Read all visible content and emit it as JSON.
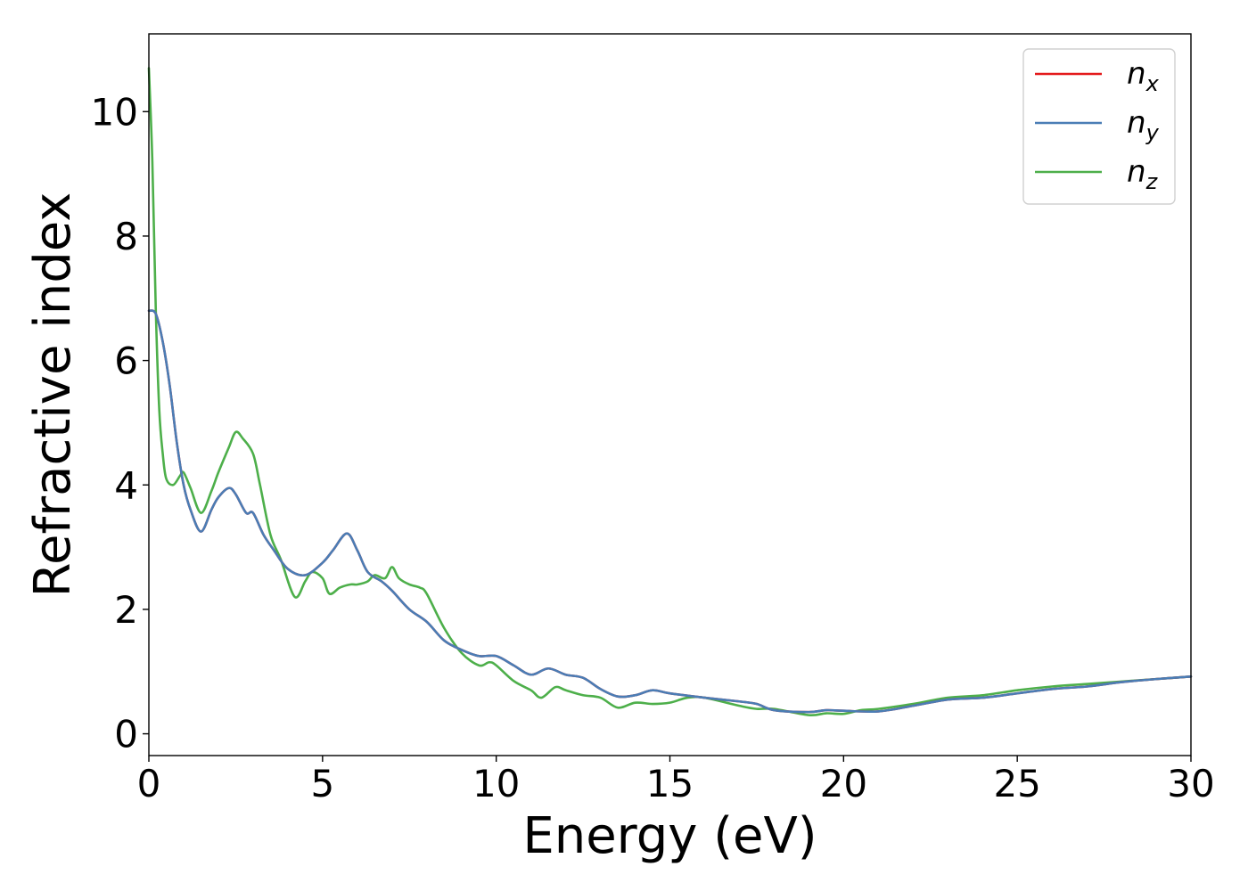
{
  "chart_data": {
    "type": "line",
    "title": "",
    "xlabel": "Energy (eV)",
    "ylabel": "Refractive index",
    "xlim": [
      0,
      30
    ],
    "ylim": [
      -0.35,
      11.25
    ],
    "xticks": [
      0,
      5,
      10,
      15,
      20,
      25,
      30
    ],
    "yticks": [
      0,
      2,
      4,
      6,
      8,
      10
    ],
    "grid": false,
    "legend_position": "top-right",
    "series": [
      {
        "name": "n_x",
        "legend_base": "n",
        "legend_sub": "x",
        "color": "#e41a1c",
        "x": [
          0,
          0.2,
          0.4,
          0.6,
          0.8,
          1.0,
          1.2,
          1.5,
          1.8,
          2.0,
          2.3,
          2.5,
          2.8,
          3.0,
          3.3,
          3.6,
          4.0,
          4.5,
          5.0,
          5.3,
          5.7,
          6.0,
          6.3,
          6.7,
          7.0,
          7.5,
          8.0,
          8.5,
          9.0,
          9.5,
          10.0,
          10.5,
          11.0,
          11.5,
          12.0,
          12.5,
          13.0,
          13.5,
          14.0,
          14.5,
          15.0,
          16.0,
          17.0,
          17.5,
          18.0,
          19.0,
          19.5,
          20.0,
          21.0,
          22.0,
          23.0,
          24.0,
          25.0,
          26.0,
          27.0,
          28.0,
          29.0,
          30.0
        ],
        "y": [
          6.8,
          6.75,
          6.3,
          5.6,
          4.7,
          4.0,
          3.6,
          3.25,
          3.6,
          3.8,
          3.95,
          3.85,
          3.55,
          3.55,
          3.2,
          2.95,
          2.65,
          2.55,
          2.75,
          2.95,
          3.22,
          2.95,
          2.6,
          2.45,
          2.3,
          2.0,
          1.8,
          1.5,
          1.35,
          1.25,
          1.25,
          1.1,
          0.95,
          1.05,
          0.95,
          0.9,
          0.72,
          0.6,
          0.62,
          0.7,
          0.65,
          0.58,
          0.52,
          0.48,
          0.38,
          0.35,
          0.38,
          0.37,
          0.36,
          0.45,
          0.55,
          0.58,
          0.65,
          0.72,
          0.76,
          0.83,
          0.88,
          0.92
        ]
      },
      {
        "name": "n_y",
        "legend_base": "n",
        "legend_sub": "y",
        "color": "#4a7db5",
        "x": [
          0,
          0.2,
          0.4,
          0.6,
          0.8,
          1.0,
          1.2,
          1.5,
          1.8,
          2.0,
          2.3,
          2.5,
          2.8,
          3.0,
          3.3,
          3.6,
          4.0,
          4.5,
          5.0,
          5.3,
          5.7,
          6.0,
          6.3,
          6.7,
          7.0,
          7.5,
          8.0,
          8.5,
          9.0,
          9.5,
          10.0,
          10.5,
          11.0,
          11.5,
          12.0,
          12.5,
          13.0,
          13.5,
          14.0,
          14.5,
          15.0,
          16.0,
          17.0,
          17.5,
          18.0,
          19.0,
          19.5,
          20.0,
          21.0,
          22.0,
          23.0,
          24.0,
          25.0,
          26.0,
          27.0,
          28.0,
          29.0,
          30.0
        ],
        "y": [
          6.8,
          6.75,
          6.3,
          5.6,
          4.7,
          4.0,
          3.6,
          3.25,
          3.6,
          3.8,
          3.95,
          3.85,
          3.55,
          3.55,
          3.2,
          2.95,
          2.65,
          2.55,
          2.75,
          2.95,
          3.22,
          2.95,
          2.6,
          2.45,
          2.3,
          2.0,
          1.8,
          1.5,
          1.35,
          1.25,
          1.25,
          1.1,
          0.95,
          1.05,
          0.95,
          0.9,
          0.72,
          0.6,
          0.62,
          0.7,
          0.65,
          0.58,
          0.52,
          0.48,
          0.38,
          0.35,
          0.38,
          0.37,
          0.36,
          0.45,
          0.55,
          0.58,
          0.65,
          0.72,
          0.76,
          0.83,
          0.88,
          0.92
        ]
      },
      {
        "name": "n_z",
        "legend_base": "n",
        "legend_sub": "z",
        "color": "#4daf4a",
        "x": [
          0,
          0.1,
          0.2,
          0.3,
          0.4,
          0.5,
          0.7,
          0.9,
          1.0,
          1.2,
          1.5,
          1.8,
          2.0,
          2.3,
          2.5,
          2.7,
          3.0,
          3.2,
          3.5,
          3.8,
          4.2,
          4.5,
          4.7,
          5.0,
          5.2,
          5.5,
          5.8,
          6.0,
          6.3,
          6.5,
          6.8,
          7.0,
          7.2,
          7.5,
          7.8,
          8.0,
          8.5,
          9.0,
          9.5,
          9.8,
          10.0,
          10.5,
          11.0,
          11.3,
          11.7,
          12.0,
          12.5,
          13.0,
          13.5,
          14.0,
          14.5,
          15.0,
          15.5,
          16.0,
          17.0,
          17.5,
          18.0,
          19.0,
          19.5,
          20.0,
          20.5,
          21.0,
          22.0,
          23.0,
          24.0,
          25.0,
          26.0,
          27.0,
          28.0,
          29.0,
          30.0
        ],
        "y": [
          10.7,
          9.2,
          6.8,
          5.2,
          4.5,
          4.1,
          4.0,
          4.15,
          4.2,
          3.95,
          3.55,
          3.9,
          4.2,
          4.6,
          4.85,
          4.75,
          4.5,
          4.0,
          3.2,
          2.8,
          2.2,
          2.45,
          2.6,
          2.5,
          2.25,
          2.35,
          2.4,
          2.4,
          2.45,
          2.55,
          2.5,
          2.68,
          2.5,
          2.4,
          2.35,
          2.25,
          1.7,
          1.3,
          1.1,
          1.15,
          1.1,
          0.85,
          0.7,
          0.58,
          0.75,
          0.7,
          0.62,
          0.58,
          0.42,
          0.5,
          0.48,
          0.5,
          0.58,
          0.58,
          0.45,
          0.4,
          0.4,
          0.3,
          0.33,
          0.32,
          0.38,
          0.4,
          0.48,
          0.58,
          0.62,
          0.7,
          0.76,
          0.8,
          0.84,
          0.88,
          0.92
        ]
      }
    ]
  }
}
